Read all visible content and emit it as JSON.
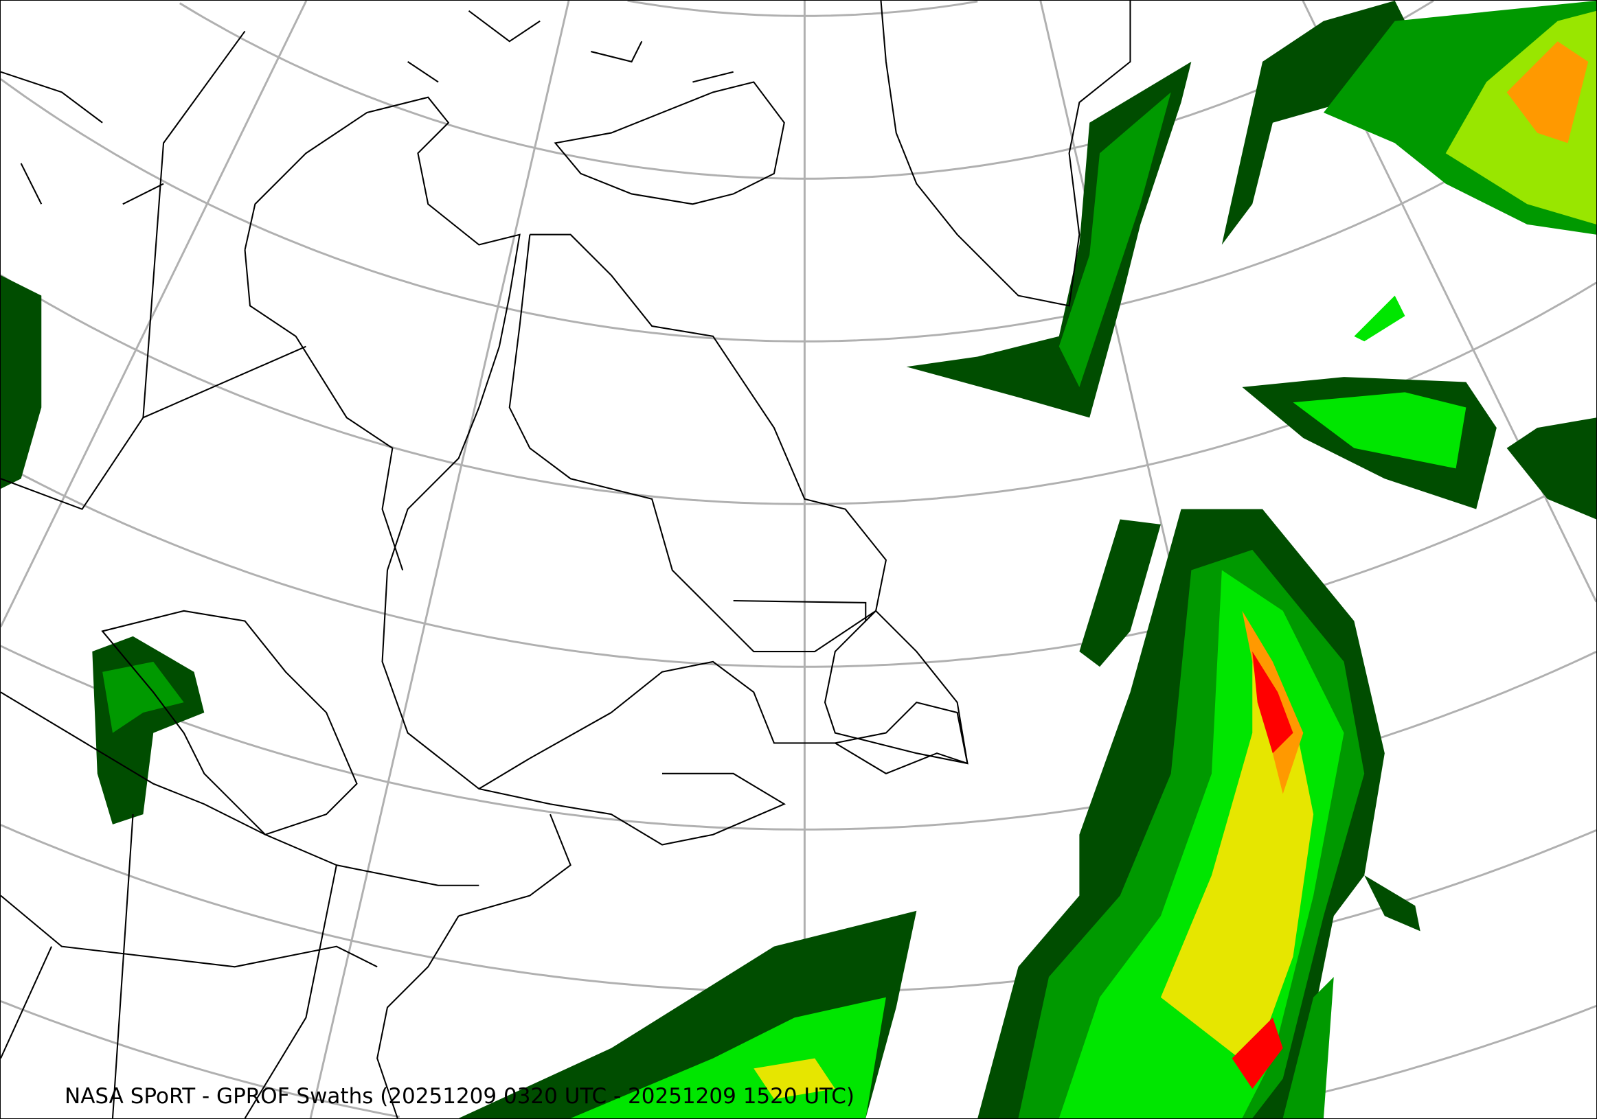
{
  "map": {
    "title": "NASA SPoRT - GPROF Swaths (20251209 0320 UTC - 20251209 1520 UTC)",
    "projection": "polar conic",
    "region": "Northeastern North America, Greenland and North Atlantic",
    "layers": [
      "coastlines",
      "political borders",
      "graticule",
      "GPROF precipitation swaths"
    ],
    "colors": {
      "graticule": "#b0b0b0",
      "coast": "#000000",
      "precip_scale": [
        "#004d00",
        "#009900",
        "#00e600",
        "#99e600",
        "#e6e600",
        "#ff9900",
        "#ff0000"
      ]
    }
  }
}
